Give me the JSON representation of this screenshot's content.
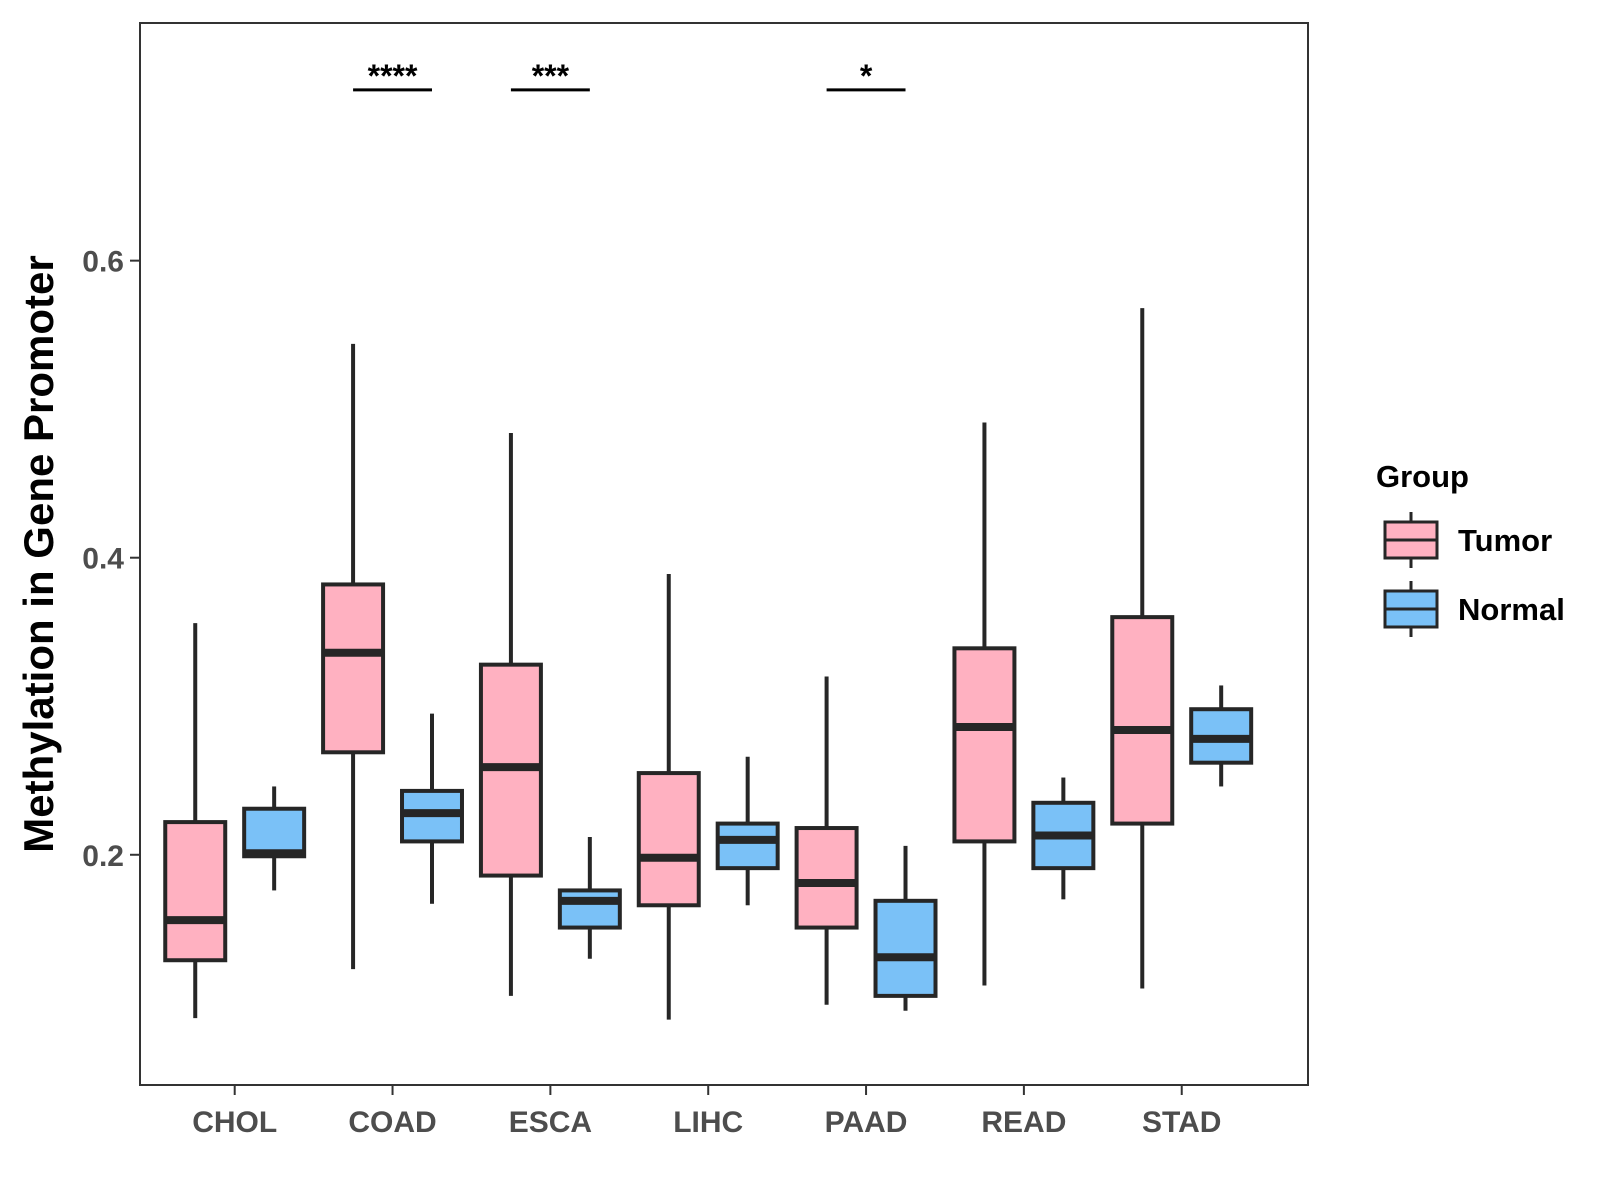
{
  "chart_data": {
    "type": "boxplot",
    "title": "",
    "xlabel": "",
    "ylabel": "Methylation in Gene Promoter",
    "ylim": [
      0.045,
      0.76
    ],
    "yticks": [
      0.2,
      0.4,
      0.6
    ],
    "ytick_labels": [
      "0.2",
      "0.4",
      "0.6"
    ],
    "categories": [
      "CHOL",
      "COAD",
      "ESCA",
      "LIHC",
      "PAAD",
      "READ",
      "STAD"
    ],
    "colors": {
      "Tumor": "#ffb1c1",
      "Normal": "#7ac1f7",
      "outline": "#262626",
      "panel_border": "#333333"
    },
    "series": [
      {
        "name": "Tumor",
        "boxes": [
          {
            "category": "CHOL",
            "min": 0.09,
            "q1": 0.129,
            "median": 0.156,
            "q3": 0.222,
            "max": 0.356
          },
          {
            "category": "COAD",
            "min": 0.123,
            "q1": 0.269,
            "median": 0.336,
            "q3": 0.382,
            "max": 0.544
          },
          {
            "category": "ESCA",
            "min": 0.105,
            "q1": 0.186,
            "median": 0.259,
            "q3": 0.328,
            "max": 0.484
          },
          {
            "category": "LIHC",
            "min": 0.089,
            "q1": 0.166,
            "median": 0.198,
            "q3": 0.255,
            "max": 0.389
          },
          {
            "category": "PAAD",
            "min": 0.099,
            "q1": 0.151,
            "median": 0.181,
            "q3": 0.218,
            "max": 0.32
          },
          {
            "category": "READ",
            "min": 0.112,
            "q1": 0.209,
            "median": 0.286,
            "q3": 0.339,
            "max": 0.491
          },
          {
            "category": "STAD",
            "min": 0.11,
            "q1": 0.221,
            "median": 0.284,
            "q3": 0.36,
            "max": 0.568
          }
        ]
      },
      {
        "name": "Normal",
        "boxes": [
          {
            "category": "CHOL",
            "min": 0.176,
            "q1": 0.199,
            "median": 0.201,
            "q3": 0.231,
            "max": 0.246
          },
          {
            "category": "COAD",
            "min": 0.167,
            "q1": 0.209,
            "median": 0.228,
            "q3": 0.243,
            "max": 0.295
          },
          {
            "category": "ESCA",
            "min": 0.13,
            "q1": 0.151,
            "median": 0.169,
            "q3": 0.176,
            "max": 0.212
          },
          {
            "category": "LIHC",
            "min": 0.166,
            "q1": 0.191,
            "median": 0.21,
            "q3": 0.221,
            "max": 0.266
          },
          {
            "category": "PAAD",
            "min": 0.095,
            "q1": 0.105,
            "median": 0.131,
            "q3": 0.169,
            "max": 0.206
          },
          {
            "category": "READ",
            "min": 0.17,
            "q1": 0.191,
            "median": 0.213,
            "q3": 0.235,
            "max": 0.252
          },
          {
            "category": "STAD",
            "min": 0.246,
            "q1": 0.262,
            "median": 0.278,
            "q3": 0.298,
            "max": 0.314
          }
        ]
      }
    ],
    "annotations": [
      {
        "category": "COAD",
        "label": "****",
        "y": 0.715
      },
      {
        "category": "ESCA",
        "label": "***",
        "y": 0.715
      },
      {
        "category": "PAAD",
        "label": "*",
        "y": 0.715
      }
    ],
    "legend": {
      "title": "Group",
      "position": "right",
      "entries": [
        "Tumor",
        "Normal"
      ]
    },
    "grid": false
  }
}
